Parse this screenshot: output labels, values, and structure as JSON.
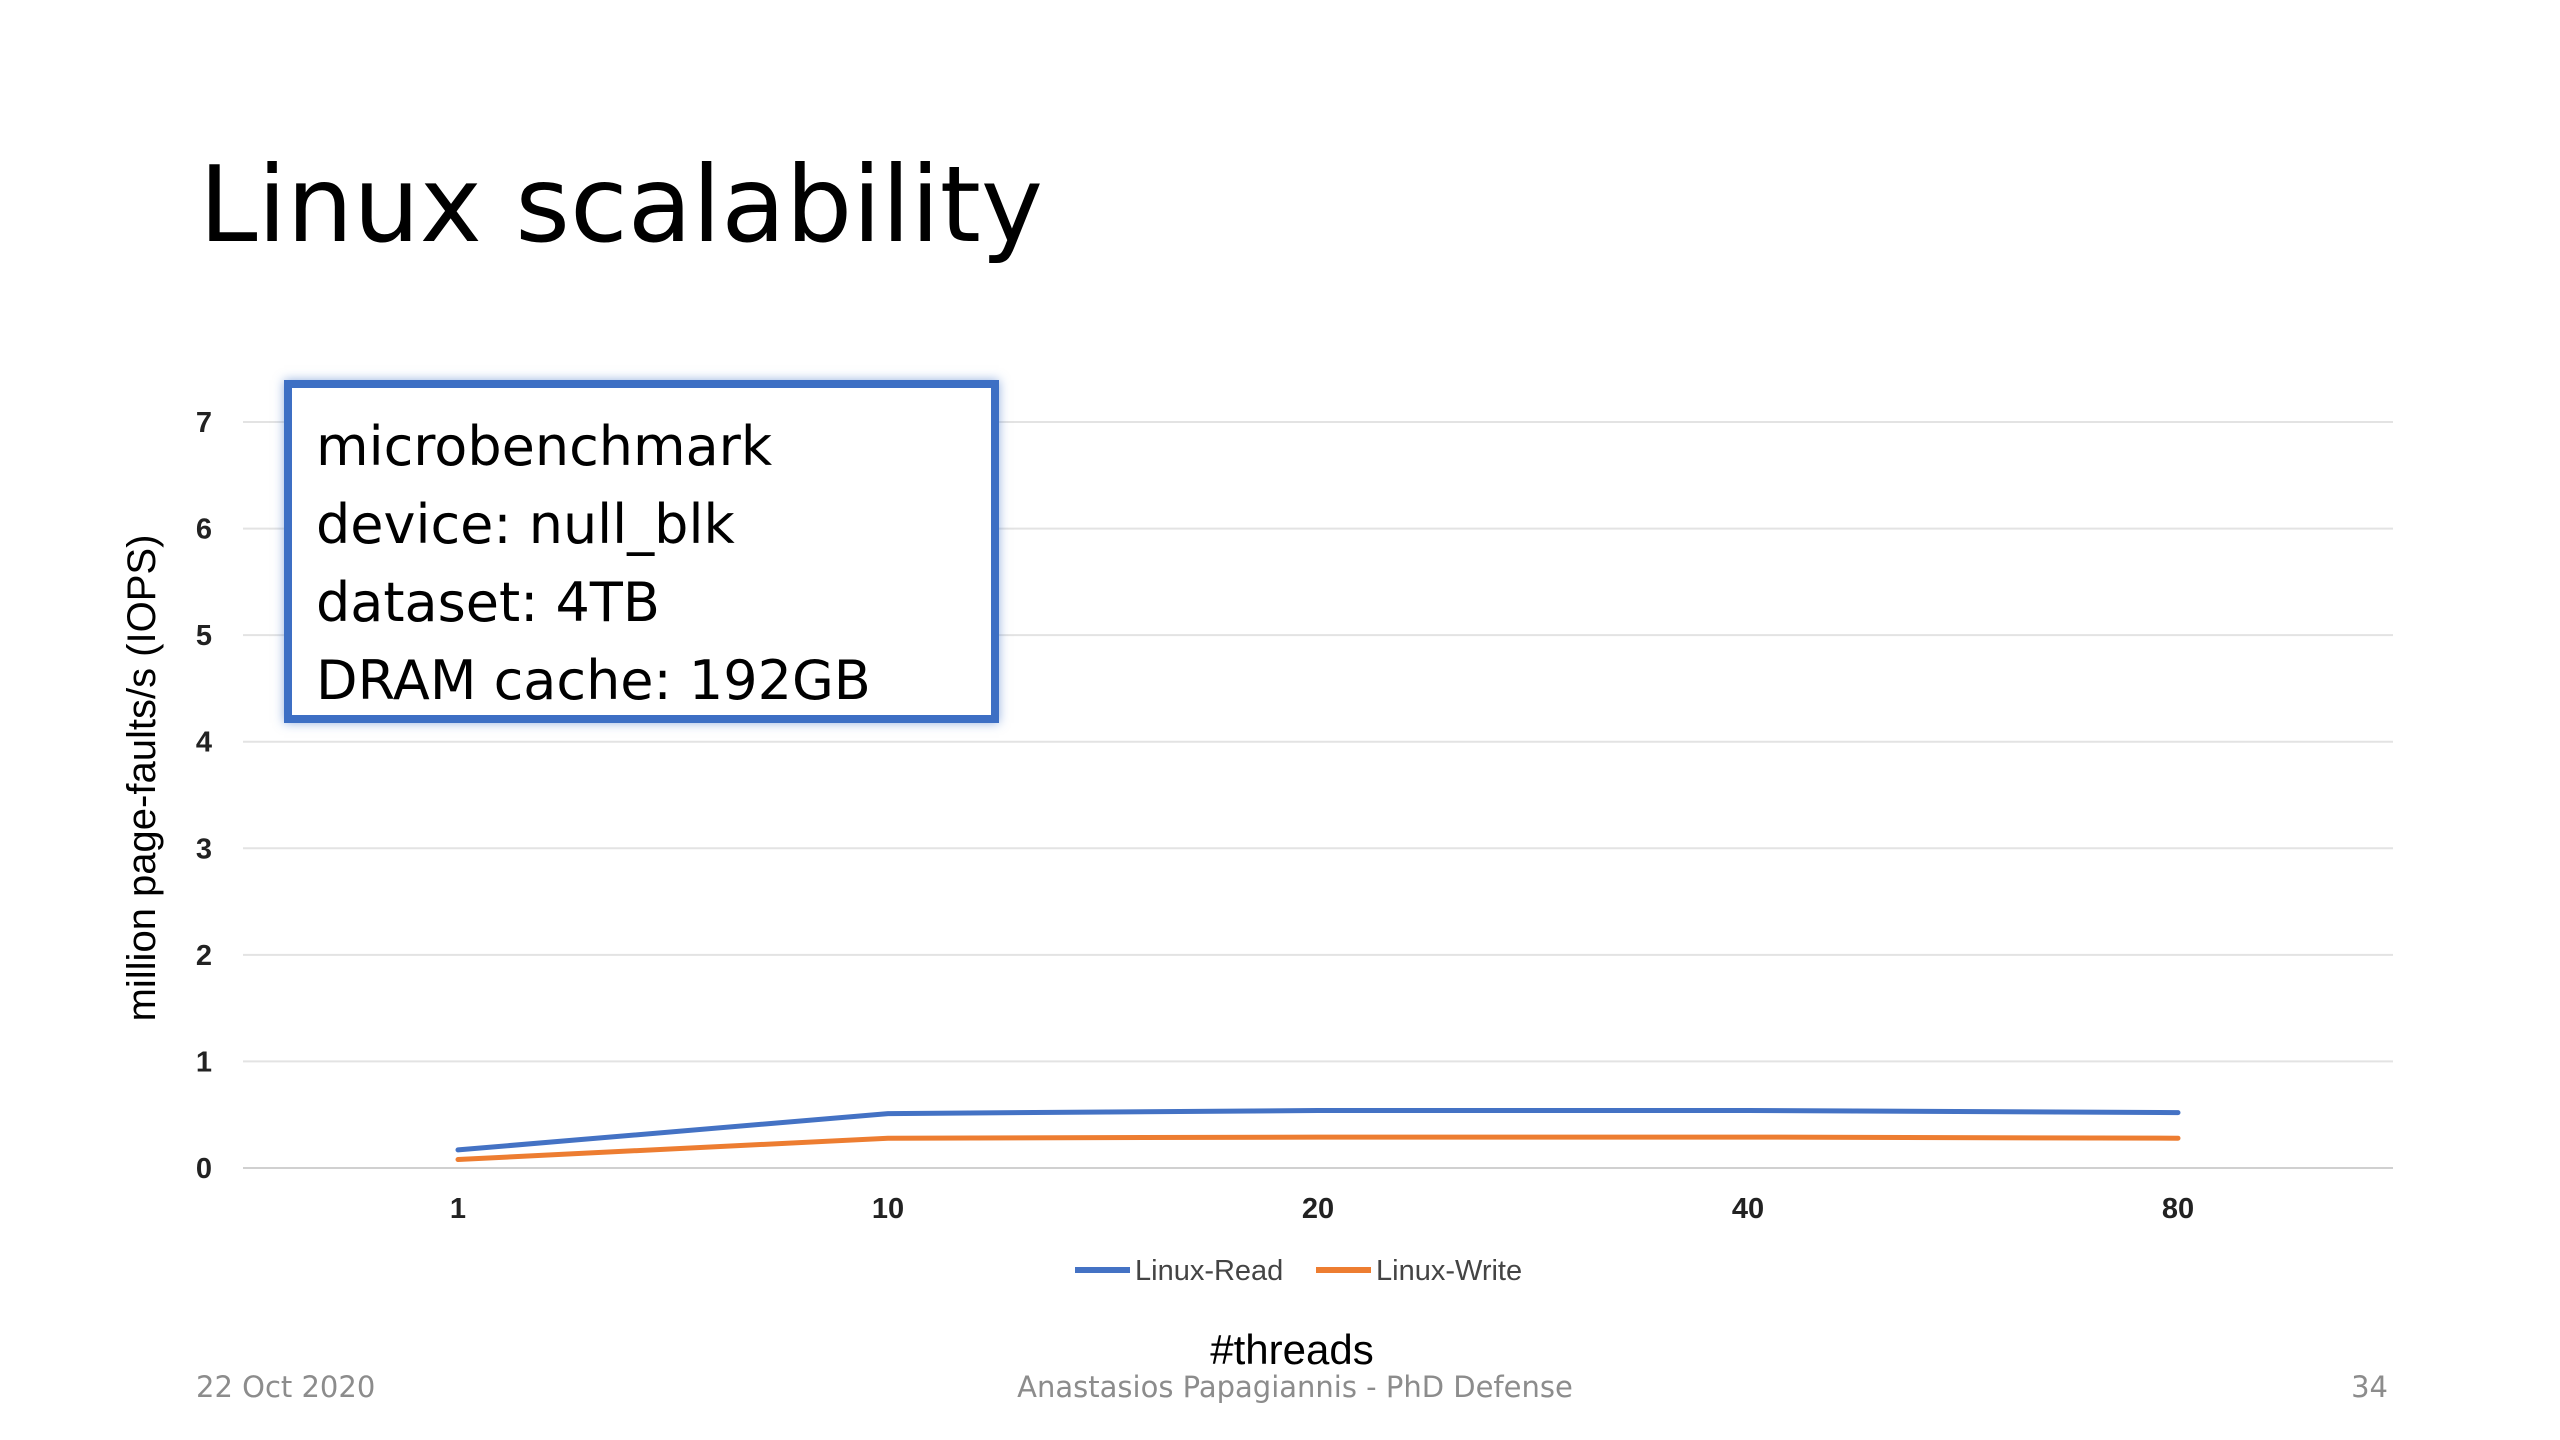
{
  "slide": {
    "title": "Linux scalability",
    "info_box": [
      "microbenchmark",
      "device: null_blk",
      "dataset: 4TB",
      "DRAM cache: 192GB"
    ],
    "footer": {
      "date": "22 Oct 2020",
      "center": "Anastasios Papagiannis - PhD Defense",
      "page": "34"
    }
  },
  "chart_data": {
    "type": "line",
    "categories": [
      "1",
      "10",
      "20",
      "40",
      "80"
    ],
    "series": [
      {
        "name": "Linux-Read",
        "values": [
          0.17,
          0.51,
          0.54,
          0.54,
          0.52
        ],
        "color": "#4472c4"
      },
      {
        "name": "Linux-Write",
        "values": [
          0.08,
          0.28,
          0.29,
          0.29,
          0.28
        ],
        "color": "#ed7d31"
      }
    ],
    "xlabel": "#threads",
    "ylabel": "million page-faults/s (IOPS)",
    "ylim": [
      0,
      7
    ],
    "yticks": [
      "0",
      "1",
      "2",
      "3",
      "4",
      "5",
      "6",
      "7"
    ],
    "grid": true,
    "legend_position": "bottom"
  }
}
